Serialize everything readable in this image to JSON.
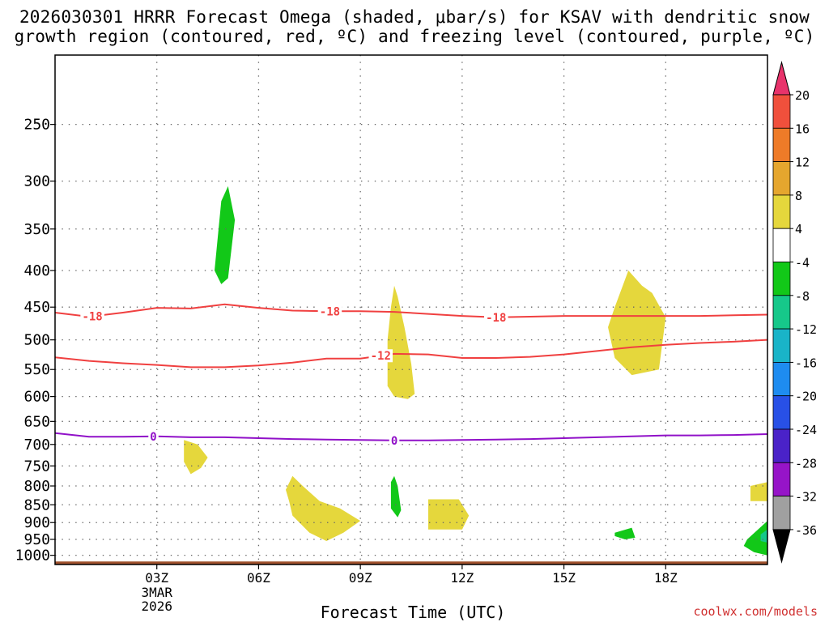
{
  "title_line1": "2026030301 HRRR Forecast Omega (shaded, μbar/s) for KSAV with dendritic snow",
  "title_line2": "growth region (contoured, red, ºC) and freezing level (contoured, purple, ºC)",
  "credit": "coolwx.com/models",
  "chart_data": {
    "type": "heatmap",
    "xlabel": "Forecast Time (UTC)",
    "ylabel": "",
    "x_tick_labels": [
      "03Z",
      "06Z",
      "09Z",
      "12Z",
      "15Z",
      "18Z"
    ],
    "x_tick_hours": [
      3,
      6,
      9,
      12,
      15,
      18
    ],
    "x_sublabels": [
      "3MAR",
      "2026"
    ],
    "xlim_hours": [
      0,
      21
    ],
    "y_ticks": [
      250,
      300,
      350,
      400,
      450,
      500,
      550,
      600,
      650,
      700,
      750,
      800,
      850,
      900,
      950,
      1000
    ],
    "ylim": [
      200,
      1030
    ],
    "y_scale": "log",
    "grid": true,
    "colorbar": {
      "labels": [
        "20",
        "16",
        "12",
        "8",
        "4",
        "-4",
        "-8",
        "-12",
        "-16",
        "-20",
        "-24",
        "-28",
        "-32",
        "-36"
      ],
      "colors": [
        "#e8336b",
        "#f0503c",
        "#ee7b28",
        "#e5a62e",
        "#e5d73c",
        "#ffffff",
        "#12c818",
        "#16c88a",
        "#19b4c8",
        "#1e8cf0",
        "#2850e6",
        "#4a22c8",
        "#9614c8",
        "#a0a0a0",
        "#000000"
      ]
    },
    "contours": [
      {
        "name": "-18",
        "color": "#f04040",
        "label": "-18",
        "label_hours": [
          1.1,
          8.1,
          13.0
        ],
        "hours": [
          0,
          1,
          2,
          3,
          4,
          5,
          6,
          7,
          8,
          9,
          10,
          11,
          12,
          13,
          14,
          15,
          16,
          17,
          18,
          19,
          20,
          21
        ],
        "pressure": [
          458,
          464,
          458,
          451,
          452,
          446,
          451,
          455,
          456,
          456,
          457,
          460,
          463,
          465,
          464,
          463,
          463,
          463,
          463,
          463,
          462,
          461
        ]
      },
      {
        "name": "-12",
        "color": "#f04040",
        "label": "-12",
        "label_hours": [
          9.6
        ],
        "hours": [
          0,
          1,
          2,
          3,
          4,
          5,
          6,
          7,
          8,
          9,
          10,
          11,
          12,
          13,
          14,
          15,
          16,
          17,
          18,
          19,
          20,
          21
        ],
        "pressure": [
          529,
          535,
          539,
          542,
          546,
          546,
          543,
          538,
          531,
          531,
          523,
          524,
          530,
          530,
          528,
          524,
          518,
          512,
          508,
          505,
          503,
          500
        ]
      },
      {
        "name": "0",
        "color": "#9010c8",
        "label": "0",
        "label_hours": [
          2.9,
          10.0
        ],
        "hours": [
          0,
          1,
          2,
          3,
          4,
          5,
          6,
          7,
          8,
          9,
          10,
          11,
          12,
          13,
          14,
          15,
          16,
          17,
          18,
          19,
          20,
          21
        ],
        "pressure": [
          675,
          683,
          683,
          682,
          684,
          684,
          686,
          688,
          689,
          690,
          691,
          691,
          690,
          689,
          688,
          686,
          684,
          682,
          680,
          680,
          679,
          677
        ]
      }
    ],
    "omega_regions": [
      {
        "value": "-8",
        "color": "#12c818",
        "hours": [
          4.7,
          4.9,
          5.1,
          5.3,
          5.1,
          4.9,
          4.7
        ],
        "pressure": [
          400,
          320,
          305,
          340,
          410,
          418,
          400
        ]
      },
      {
        "value": "4",
        "color": "#e5d73c",
        "hours": [
          10.0,
          10.1,
          10.3,
          10.5,
          10.6,
          10.4,
          10.0,
          9.8,
          9.8,
          9.9,
          10.0
        ],
        "pressure": [
          420,
          435,
          480,
          540,
          595,
          605,
          600,
          580,
          500,
          450,
          420
        ]
      },
      {
        "value": "4",
        "color": "#e5d73c",
        "hours": [
          16.5,
          16.9,
          17.3,
          17.6,
          18.0,
          17.8,
          17.0,
          16.5,
          16.3
        ],
        "pressure": [
          450,
          400,
          420,
          430,
          465,
          550,
          560,
          530,
          480
        ]
      },
      {
        "value": "4",
        "color": "#e5d73c",
        "hours": [
          3.8,
          4.2,
          4.5,
          4.3,
          4.0,
          3.8
        ],
        "pressure": [
          690,
          700,
          730,
          755,
          770,
          740
        ]
      },
      {
        "value": "4",
        "color": "#e5d73c",
        "hours": [
          7.0,
          7.3,
          7.8,
          8.4,
          9.0,
          8.5,
          8.0,
          7.5,
          7.0,
          6.9,
          6.8
        ],
        "pressure": [
          775,
          800,
          840,
          860,
          895,
          930,
          955,
          930,
          880,
          840,
          810
        ]
      },
      {
        "value": "-8",
        "color": "#12c818",
        "hours": [
          9.9,
          10.0,
          10.1,
          10.2,
          10.1,
          9.9
        ],
        "pressure": [
          790,
          775,
          800,
          865,
          885,
          860
        ]
      },
      {
        "value": "4",
        "color": "#e5d73c",
        "hours": [
          11.0,
          11.9,
          12.2,
          12.0,
          11.0
        ],
        "pressure": [
          835,
          835,
          880,
          920,
          920
        ]
      },
      {
        "value": "4",
        "color": "#e5d73c",
        "hours": [
          20.5,
          21.0,
          21.0,
          20.5
        ],
        "pressure": [
          800,
          790,
          840,
          840
        ]
      },
      {
        "value": "-8",
        "color": "#12c818",
        "hours": [
          16.5,
          17.0,
          17.1,
          16.8,
          16.5
        ],
        "pressure": [
          930,
          915,
          945,
          950,
          940
        ]
      },
      {
        "value": "-8",
        "color": "#12c818",
        "hours": [
          20.4,
          21.0,
          21.0,
          20.6,
          20.3
        ],
        "pressure": [
          950,
          895,
          1000,
          990,
          970
        ]
      },
      {
        "value": "-12",
        "color": "#16c88a",
        "hours": [
          20.8,
          21.0,
          21.0,
          20.8
        ],
        "pressure": [
          935,
          920,
          960,
          955
        ]
      }
    ],
    "ground": {
      "color": "#a0522d",
      "pressure_top": 1020
    }
  }
}
